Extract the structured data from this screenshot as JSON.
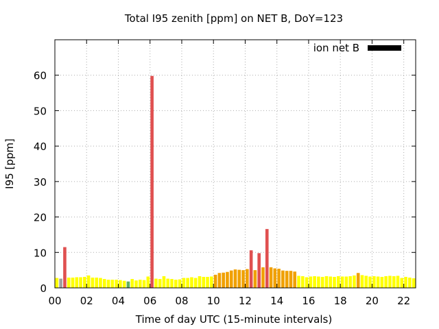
{
  "chart_data": {
    "type": "bar",
    "title": "Total I95 zenith [ppm] on NET B, DoY=123",
    "xlabel": "Time of day UTC (15-minute intervals)",
    "ylabel": "I95 [ppm]",
    "xlim": [
      0,
      22.75
    ],
    "ylim": [
      0,
      70
    ],
    "xticks": [
      "00",
      "02",
      "04",
      "06",
      "08",
      "10",
      "12",
      "14",
      "16",
      "18",
      "20",
      "22"
    ],
    "yticks": [
      "0",
      "10",
      "20",
      "30",
      "40",
      "50",
      "60"
    ],
    "grid": true,
    "legend": {
      "label": "ion net B",
      "color": "#000000",
      "placement": "top-right"
    },
    "bar_width_hours": 0.2,
    "colors": {
      "yellow": "#ffff00",
      "light": "#f4e41a",
      "orange": "#f0a000",
      "red": "#e05050",
      "gray": "#a0a0a0",
      "green": "#60b060"
    },
    "series": [
      {
        "x": [
          0.0,
          0.25,
          0.5,
          0.75,
          1.0,
          1.25,
          1.5,
          1.75,
          2.0,
          2.25,
          2.5,
          2.75,
          3.0,
          3.25,
          3.5,
          3.75,
          4.0,
          4.25,
          4.5,
          4.75,
          5.0,
          5.25,
          5.5,
          5.75,
          6.0,
          6.25,
          6.5,
          6.75,
          7.0,
          7.25,
          7.5,
          7.75,
          8.0,
          8.25,
          8.5,
          8.75,
          9.0,
          9.25,
          9.5,
          9.75,
          10.0,
          10.25,
          10.5,
          10.75,
          11.0,
          11.25,
          11.5,
          11.75,
          12.0,
          12.25,
          12.5,
          12.75,
          13.0,
          13.25,
          13.5,
          13.75,
          14.0,
          14.25,
          14.5,
          14.75,
          15.0,
          15.25,
          15.5,
          15.75,
          16.0,
          16.25,
          16.5,
          16.75,
          17.0,
          17.25,
          17.5,
          17.75,
          18.0,
          18.25,
          18.5,
          18.75,
          19.0,
          19.25,
          19.5,
          19.75,
          20.0,
          20.25,
          20.5,
          20.75,
          21.0,
          21.25,
          21.5,
          21.75,
          22.0,
          22.25,
          22.5
        ],
        "values": [
          2.8,
          2.6,
          11.5,
          2.9,
          2.9,
          3.0,
          3.0,
          3.1,
          3.5,
          2.9,
          2.9,
          2.8,
          2.5,
          2.3,
          2.3,
          2.3,
          2.2,
          2.0,
          1.8,
          2.5,
          2.1,
          2.3,
          2.2,
          3.2,
          59.8,
          2.6,
          2.5,
          3.3,
          2.6,
          2.5,
          2.3,
          2.4,
          2.8,
          2.8,
          3.0,
          2.8,
          3.3,
          3.1,
          3.1,
          3.2,
          3.7,
          4.2,
          4.3,
          4.5,
          4.9,
          5.2,
          5.1,
          5.0,
          5.3,
          10.6,
          5.0,
          9.8,
          5.8,
          16.6,
          5.8,
          5.5,
          5.4,
          4.9,
          4.8,
          4.8,
          4.6,
          3.4,
          3.3,
          3.0,
          3.2,
          3.3,
          3.2,
          3.1,
          3.3,
          3.2,
          3.1,
          3.3,
          3.2,
          3.2,
          3.3,
          3.5,
          4.2,
          3.6,
          3.4,
          3.2,
          3.3,
          3.2,
          3.1,
          3.3,
          3.4,
          3.3,
          3.4,
          2.8,
          3.1,
          2.9,
          2.7
        ],
        "color_keys": [
          "yellow",
          "gray",
          "red",
          "yellow",
          "yellow",
          "yellow",
          "yellow",
          "yellow",
          "yellow",
          "yellow",
          "yellow",
          "yellow",
          "yellow",
          "yellow",
          "yellow",
          "yellow",
          "yellow",
          "yellow",
          "green",
          "yellow",
          "yellow",
          "yellow",
          "yellow",
          "yellow",
          "red",
          "yellow",
          "yellow",
          "yellow",
          "yellow",
          "yellow",
          "yellow",
          "yellow",
          "yellow",
          "yellow",
          "yellow",
          "yellow",
          "yellow",
          "yellow",
          "yellow",
          "yellow",
          "orange",
          "orange",
          "orange",
          "orange",
          "orange",
          "orange",
          "orange",
          "orange",
          "orange",
          "red",
          "orange",
          "red",
          "orange",
          "red",
          "orange",
          "orange",
          "orange",
          "orange",
          "orange",
          "orange",
          "orange",
          "yellow",
          "yellow",
          "yellow",
          "yellow",
          "yellow",
          "yellow",
          "yellow",
          "yellow",
          "yellow",
          "yellow",
          "yellow",
          "yellow",
          "yellow",
          "yellow",
          "yellow",
          "orange",
          "yellow",
          "yellow",
          "yellow",
          "yellow",
          "yellow",
          "yellow",
          "yellow",
          "yellow",
          "yellow",
          "yellow",
          "yellow",
          "yellow",
          "yellow",
          "yellow"
        ]
      }
    ]
  }
}
